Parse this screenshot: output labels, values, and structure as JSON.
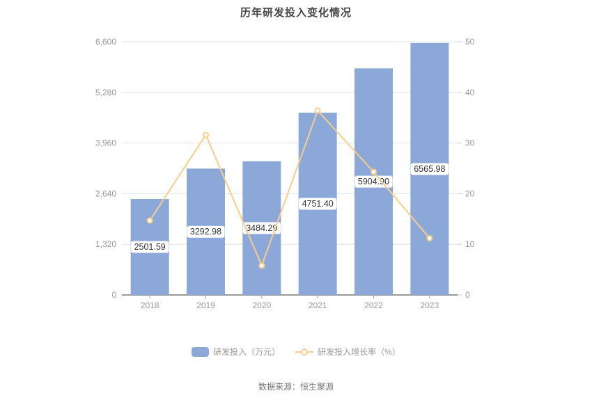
{
  "chart_data": {
    "type": "bar",
    "title": "历年研发投入变化情况",
    "categories": [
      "2018",
      "2019",
      "2020",
      "2021",
      "2022",
      "2023"
    ],
    "series": [
      {
        "name": "研发投入（万元）",
        "type": "bar",
        "axis": "left",
        "color": "#8ba8d8",
        "values": [
          2501.59,
          3292.98,
          3484.29,
          4751.4,
          5904.9,
          6565.98
        ],
        "labels": [
          "2501.59",
          "3292.98",
          "3484.29",
          "4751.40",
          "5904.90",
          "6565.98"
        ]
      },
      {
        "name": "研发投入增长率（%）",
        "type": "line",
        "axis": "right",
        "color": "#f6cd8d",
        "marker": "empty-circle",
        "marker_fill": "#ffffff",
        "values": [
          14.7,
          31.6,
          5.8,
          36.4,
          24.3,
          11.2
        ]
      }
    ],
    "left_axis": {
      "min": 0,
      "max": 6600,
      "ticks": [
        "0",
        "1,320",
        "2,640",
        "3,960",
        "5,280",
        "6,600"
      ]
    },
    "right_axis": {
      "min": 0,
      "max": 50,
      "ticks": [
        "0",
        "10",
        "20",
        "30",
        "40",
        "50"
      ]
    },
    "grid": true,
    "legend_position": "bottom",
    "source": "数据来源：恒生聚源",
    "colors": {
      "bar": "#8ba8d8",
      "line": "#f6cd8d",
      "grid_line": "#dde4ee",
      "axis_line": "#333333",
      "axis_tick": "#999999",
      "right_tick": "#cccccc",
      "tick_label": "#999999",
      "bar_label_text": "#333333",
      "bar_label_bg": "#ffffff",
      "title": "#464646",
      "legend_text": "#999999",
      "source_text": "#757575"
    }
  }
}
